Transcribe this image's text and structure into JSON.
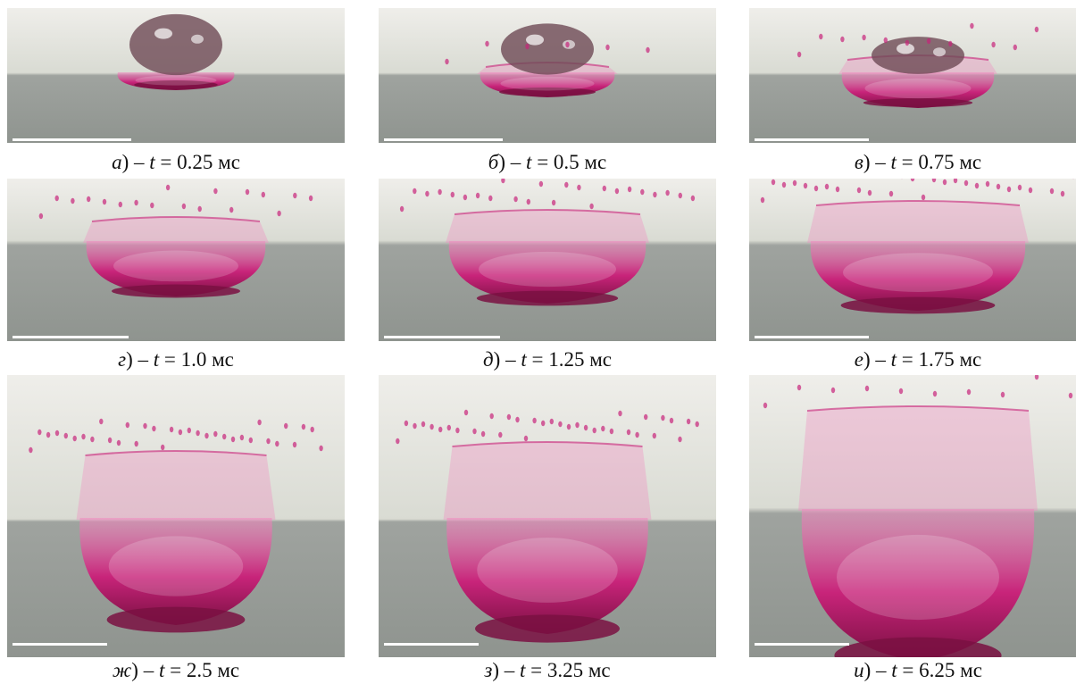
{
  "figure": {
    "panels": [
      {
        "letter": "а",
        "sep": ") – ",
        "var": "t",
        "eq": " = ",
        "value": "0.25",
        "unit": " мс"
      },
      {
        "letter": "б",
        "sep": ") – ",
        "var": "t",
        "eq": " = ",
        "value": "0.5",
        "unit": " мс"
      },
      {
        "letter": "в",
        "sep": ") – ",
        "var": "t",
        "eq": " = ",
        "value": "0.75",
        "unit": " мс"
      },
      {
        "letter": "г",
        "sep": ") – ",
        "var": "t",
        "eq": " = ",
        "value": "1.0",
        "unit": " мс"
      },
      {
        "letter": "д",
        "sep": ") – ",
        "var": "t",
        "eq": " = ",
        "value": "1.25",
        "unit": " мс"
      },
      {
        "letter": "е",
        "sep": ") – ",
        "var": "t",
        "eq": " = ",
        "value": "1.75",
        "unit": " мс"
      },
      {
        "letter": "ж",
        "sep": ") – ",
        "var": "t",
        "eq": " = ",
        "value": "2.5",
        "unit": " мс"
      },
      {
        "letter": "з",
        "sep": ") – ",
        "var": "t",
        "eq": " = ",
        "value": "3.25",
        "unit": " мс"
      },
      {
        "letter": "и",
        "sep": ") – ",
        "var": "t",
        "eq": " = ",
        "value": "6.25",
        "unit": " мс"
      }
    ],
    "colors": {
      "sky_top": "#efeeea",
      "sky_mid": "#d9dbd3",
      "liquid_gray": "#9fa39f",
      "magenta": "#c8247a",
      "deep_magenta": "#7a1042",
      "pink_highlight": "#f08abf",
      "scale_bar": "#ffffff"
    }
  }
}
